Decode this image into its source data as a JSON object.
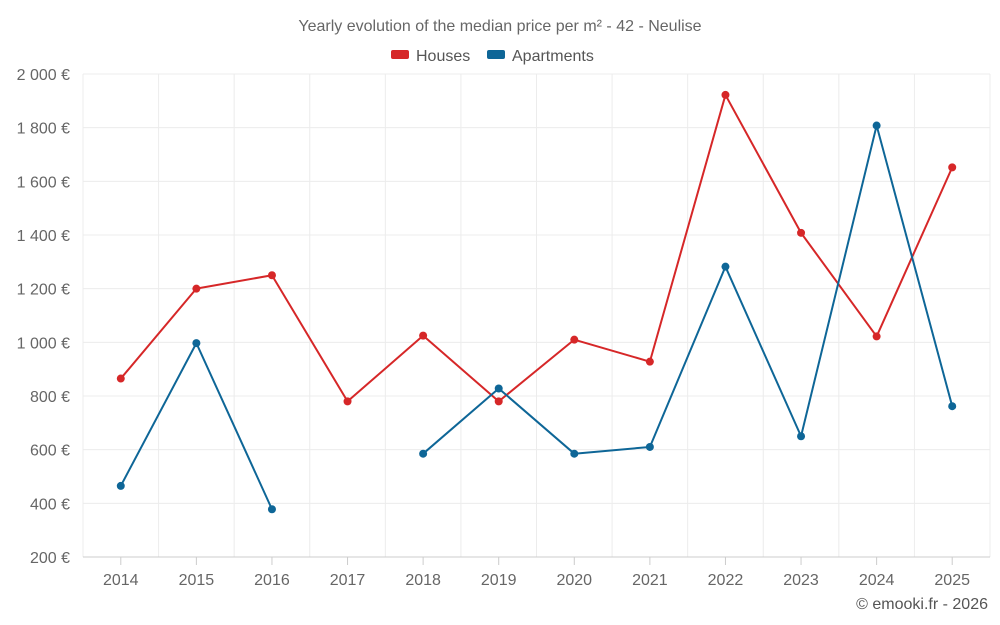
{
  "chart_data": {
    "type": "line",
    "title": "Yearly evolution of the median price per m² - 42 - Neulise",
    "categories": [
      "2014",
      "2015",
      "2016",
      "2017",
      "2018",
      "2019",
      "2020",
      "2021",
      "2022",
      "2023",
      "2024",
      "2025"
    ],
    "y_ticks": [
      "200 €",
      "400 €",
      "600 €",
      "800 €",
      "1 000 €",
      "1 200 €",
      "1 400 €",
      "1 600 €",
      "1 800 €",
      "2 000 €"
    ],
    "ylim": [
      200,
      2000
    ],
    "legend_position": "top-center",
    "series": [
      {
        "name": "Houses",
        "color": "#d62728",
        "values": [
          865,
          1200,
          1250,
          780,
          1025,
          780,
          1010,
          928,
          1922,
          1408,
          1022,
          1652
        ]
      },
      {
        "name": "Apartments",
        "color": "#0e6697",
        "values": [
          465,
          997,
          378,
          null,
          585,
          828,
          585,
          610,
          1282,
          650,
          1808,
          762
        ]
      }
    ],
    "credit": "© emooki.fr - 2026"
  }
}
